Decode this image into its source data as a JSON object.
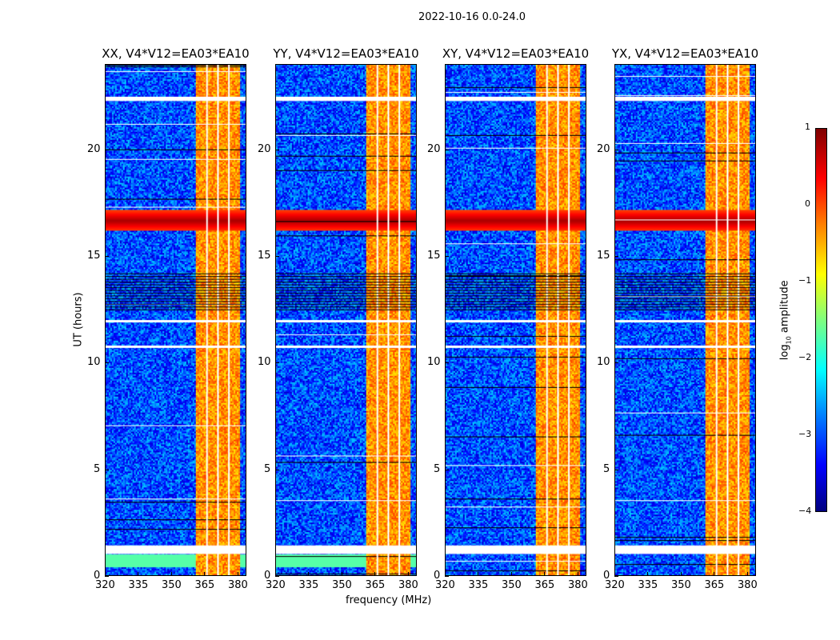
{
  "chart_data": {
    "type": "heatmap",
    "title": "2022-10-16 0.0-24.0",
    "xlabel": "frequency (MHz)",
    "ylabel": "UT (hours)",
    "xlim": [
      320,
      384
    ],
    "ylim": [
      0,
      24
    ],
    "xticks": [
      "320",
      "335",
      "350",
      "365",
      "380"
    ],
    "yticks": [
      "0",
      "5",
      "10",
      "15",
      "20"
    ],
    "panels": [
      {
        "title": "XX, V4*V12=EA03*EA10"
      },
      {
        "title": "YY, V4*V12=EA03*EA10"
      },
      {
        "title": "XY, V4*V12=EA03*EA10"
      },
      {
        "title": "YX, V4*V12=EA03*EA10"
      }
    ],
    "colorbar": {
      "label": "log10 amplitude",
      "label_main": "log",
      "label_sub": "10",
      "label_rest": " amplitude",
      "range": [
        -4,
        1
      ],
      "ticks": [
        "1",
        "0",
        "−1",
        "−2",
        "−3",
        "−4"
      ],
      "colormap": "jet"
    },
    "features": {
      "background_log_amp": -3,
      "rfi_band_mhz": [
        361,
        381
      ],
      "rfi_band_log_amp": -0.5,
      "rfi_gaps_mhz": [
        366,
        371,
        376
      ],
      "strong_event_hours": [
        16.2,
        17.2
      ],
      "strong_event_log_amp": 0.8,
      "flagged_hours": [
        [
          22.3,
          22.5
        ],
        [
          10.7,
          10.8
        ],
        [
          1.0,
          1.4
        ],
        [
          11.9,
          12.0
        ]
      ]
    }
  }
}
